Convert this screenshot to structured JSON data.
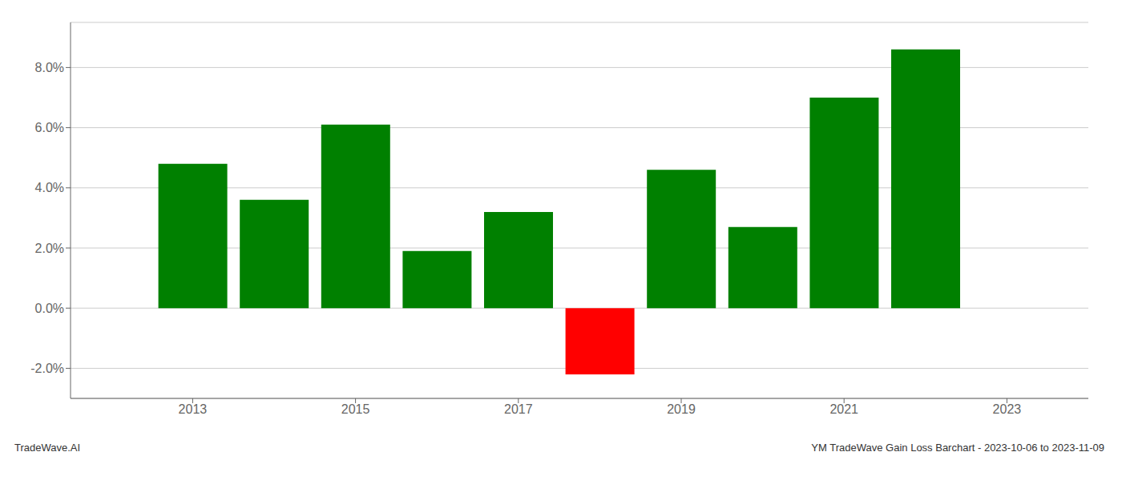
{
  "chart_data": {
    "type": "bar",
    "x": [
      2013,
      2014,
      2015,
      2016,
      2017,
      2018,
      2019,
      2020,
      2021,
      2022
    ],
    "values": [
      0.048,
      0.036,
      0.061,
      0.019,
      0.032,
      -0.022,
      0.046,
      0.027,
      0.07,
      0.086
    ],
    "colors": [
      "#008000",
      "#008000",
      "#008000",
      "#008000",
      "#008000",
      "#ff0000",
      "#008000",
      "#008000",
      "#008000",
      "#008000"
    ],
    "xlim": [
      2011.5,
      2024.0
    ],
    "ylim": [
      -0.03,
      0.095
    ],
    "xticks": [
      2013,
      2015,
      2017,
      2019,
      2021,
      2023
    ],
    "yticks": [
      {
        "value": -0.02,
        "label": "-2.0%"
      },
      {
        "value": 0.0,
        "label": "0.0%"
      },
      {
        "value": 0.02,
        "label": "2.0%"
      },
      {
        "value": 0.04,
        "label": "4.0%"
      },
      {
        "value": 0.06,
        "label": "6.0%"
      },
      {
        "value": 0.08,
        "label": "8.0%"
      }
    ],
    "grid": "y",
    "annotations": [
      "TradeWave.AI",
      "YM TradeWave Gain Loss Barchart - 2023-10-06 to 2023-11-09"
    ]
  }
}
